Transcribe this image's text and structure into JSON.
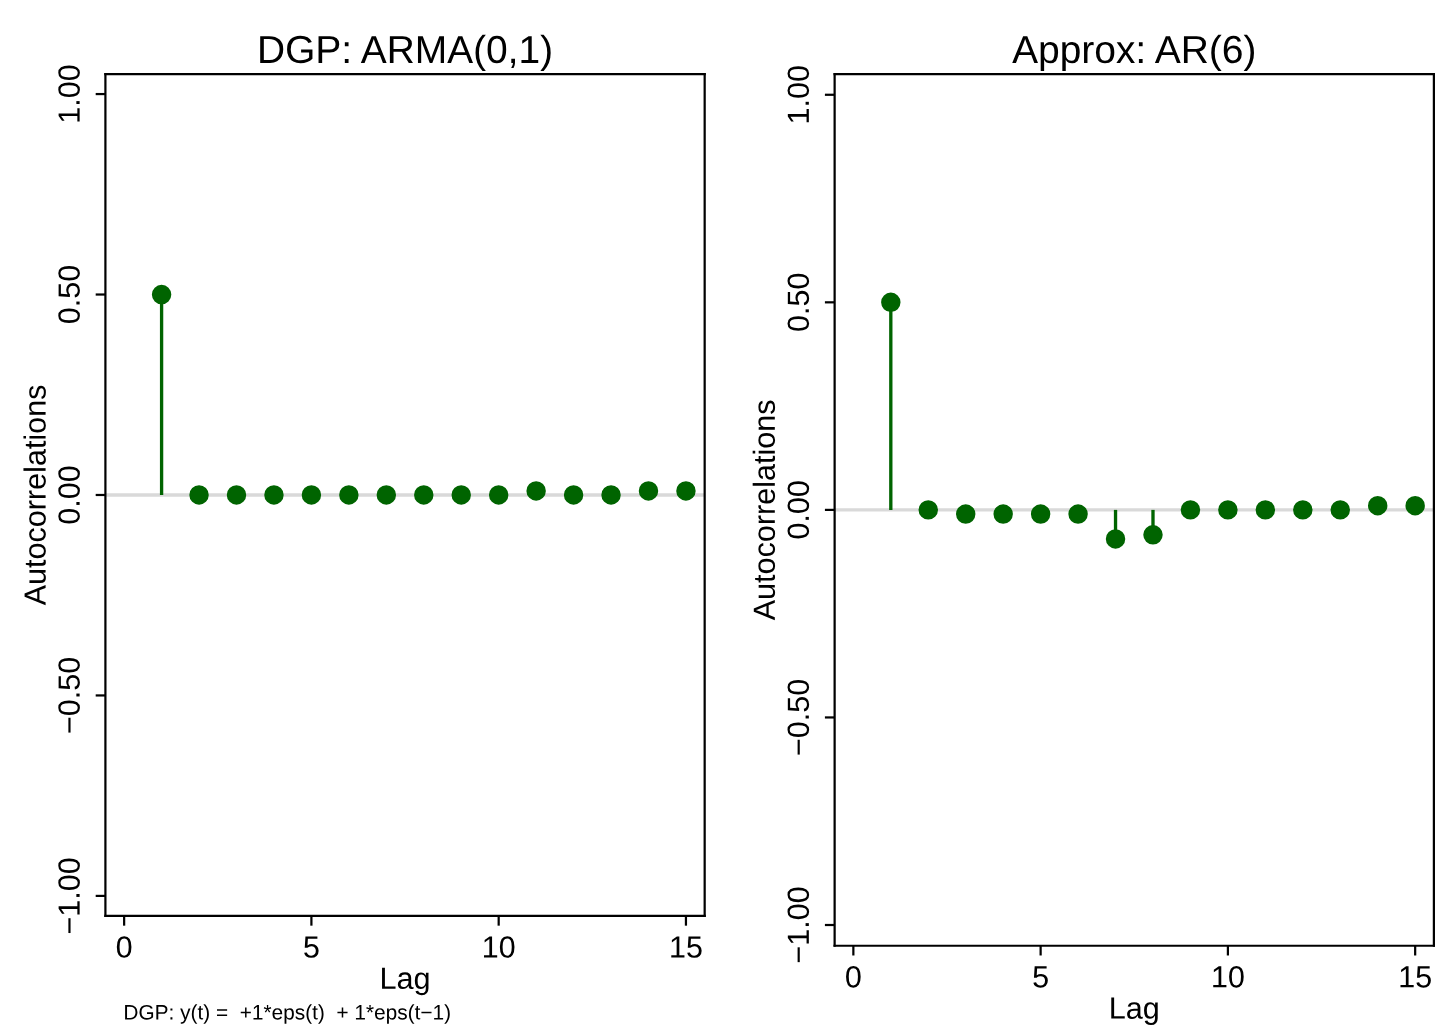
{
  "chart_data": [
    {
      "type": "lollipop",
      "title": "DGP: ARMA(0,1)",
      "xlabel": "Lag",
      "ylabel": "Autocorrelations",
      "x": [
        1,
        2,
        3,
        4,
        5,
        6,
        7,
        8,
        9,
        10,
        11,
        12,
        13,
        14,
        15
      ],
      "series": [
        {
          "color": "#006400",
          "values": [
            0.5,
            0.0,
            0.0,
            0.0,
            0.0,
            0.0,
            0.0,
            0.0,
            0.0,
            0.0,
            0.01,
            0.0,
            0.0,
            0.01,
            0.01
          ]
        }
      ],
      "marker": "circle",
      "xlim": [
        -0.5,
        15.5
      ],
      "xticks": [
        0,
        5,
        10,
        15
      ],
      "ylim": [
        -1.05,
        1.05
      ],
      "yticks": [
        {
          "value": -1,
          "label": "−1.00"
        },
        {
          "value": -0.5,
          "label": "−0.50"
        },
        {
          "value": 0,
          "label": "0.00"
        },
        {
          "value": 0.5,
          "label": "0.50"
        },
        {
          "value": 1,
          "label": "1.00"
        }
      ],
      "ref_lines": [
        {
          "axis": "y",
          "value": 0,
          "color": "#d9d9d9"
        }
      ],
      "annotations": [
        "DGP: y(t) =  +1*eps(t)  + 1*eps(t−1)"
      ]
    },
    {
      "type": "lollipop",
      "title": "Approx: AR(6)",
      "xlabel": "Lag",
      "ylabel": "Autocorrelations",
      "x": [
        1,
        2,
        3,
        4,
        5,
        6,
        7,
        8,
        9,
        10,
        11,
        12,
        13,
        14,
        15
      ],
      "series": [
        {
          "color": "#006400",
          "values": [
            0.5,
            0.0,
            -0.01,
            -0.01,
            -0.01,
            -0.01,
            -0.07,
            -0.06,
            0.0,
            0.0,
            0.0,
            0.0,
            0.0,
            0.01,
            0.01
          ]
        }
      ],
      "marker": "circle",
      "xlim": [
        -0.5,
        15.5
      ],
      "xticks": [
        0,
        5,
        10,
        15
      ],
      "ylim": [
        -1.05,
        1.05
      ],
      "yticks": [
        {
          "value": -1,
          "label": "−1.00"
        },
        {
          "value": -0.5,
          "label": "−0.50"
        },
        {
          "value": 0,
          "label": "0.00"
        },
        {
          "value": 0.5,
          "label": "0.50"
        },
        {
          "value": 1,
          "label": "1.00"
        }
      ],
      "ref_lines": [
        {
          "axis": "y",
          "value": 0,
          "color": "#d9d9d9"
        }
      ]
    }
  ]
}
